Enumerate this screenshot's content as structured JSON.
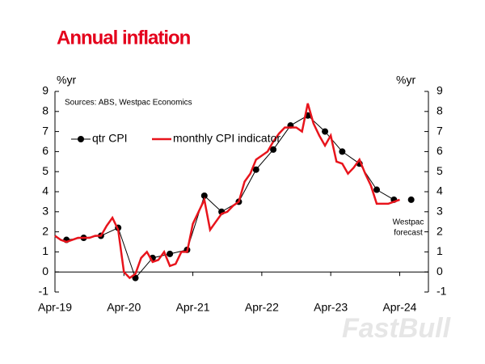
{
  "chart_data": {
    "type": "line",
    "title": "Annual inflation",
    "source": "Sources: ABS, Westpac Economics",
    "ylabel": "%yr",
    "y2label": "%yr",
    "xlim": [
      "2019-04",
      "2024-09"
    ],
    "xticks": [
      {
        "value": "2019-04",
        "label": "Apr-19"
      },
      {
        "value": "2020-04",
        "label": "Apr-20"
      },
      {
        "value": "2021-04",
        "label": "Apr-21"
      },
      {
        "value": "2022-04",
        "label": "Apr-22"
      },
      {
        "value": "2023-04",
        "label": "Apr-23"
      },
      {
        "value": "2024-04",
        "label": "Apr-24"
      }
    ],
    "ylim": [
      -1,
      9
    ],
    "yticks": [
      -1,
      0,
      1,
      2,
      3,
      4,
      5,
      6,
      7,
      8,
      9
    ],
    "y2lim": [
      -1,
      9
    ],
    "y2ticks": [
      -1,
      0,
      1,
      2,
      3,
      4,
      5,
      6,
      7,
      8,
      9
    ],
    "series": [
      {
        "name": "qtr CPI",
        "color": "#000000",
        "markers": true,
        "x": [
          "2019-06",
          "2019-09",
          "2019-12",
          "2020-03",
          "2020-06",
          "2020-09",
          "2020-12",
          "2021-03",
          "2021-06",
          "2021-09",
          "2021-12",
          "2022-03",
          "2022-06",
          "2022-09",
          "2022-12",
          "2023-03",
          "2023-06",
          "2023-09",
          "2023-12",
          "2024-03"
        ],
        "values": [
          1.6,
          1.7,
          1.8,
          2.2,
          -0.3,
          0.7,
          0.9,
          1.1,
          3.8,
          3.0,
          3.5,
          5.1,
          6.1,
          7.3,
          7.8,
          7.0,
          6.0,
          5.4,
          4.1,
          3.6
        ]
      },
      {
        "name": "monthly CPI indicator",
        "color": "#e8141c",
        "markers": false,
        "x": [
          "2019-04",
          "2019-05",
          "2019-06",
          "2019-07",
          "2019-08",
          "2019-09",
          "2019-10",
          "2019-11",
          "2019-12",
          "2020-01",
          "2020-02",
          "2020-03",
          "2020-04",
          "2020-05",
          "2020-06",
          "2020-07",
          "2020-08",
          "2020-09",
          "2020-10",
          "2020-11",
          "2020-12",
          "2021-01",
          "2021-02",
          "2021-03",
          "2021-04",
          "2021-05",
          "2021-06",
          "2021-07",
          "2021-08",
          "2021-09",
          "2021-10",
          "2021-11",
          "2021-12",
          "2022-01",
          "2022-02",
          "2022-03",
          "2022-04",
          "2022-05",
          "2022-06",
          "2022-07",
          "2022-08",
          "2022-09",
          "2022-10",
          "2022-11",
          "2022-12",
          "2023-01",
          "2023-02",
          "2023-03",
          "2023-04",
          "2023-05",
          "2023-06",
          "2023-07",
          "2023-08",
          "2023-09",
          "2023-10",
          "2023-11",
          "2023-12",
          "2024-01",
          "2024-02",
          "2024-03",
          "2024-04"
        ],
        "values": [
          1.8,
          1.6,
          1.5,
          1.6,
          1.7,
          1.7,
          1.7,
          1.8,
          1.8,
          2.3,
          2.7,
          2.1,
          0.0,
          -0.3,
          -0.1,
          0.7,
          1.0,
          0.5,
          0.6,
          1.0,
          0.3,
          0.4,
          1.0,
          1.0,
          2.4,
          3.0,
          3.6,
          2.1,
          2.5,
          2.9,
          3.0,
          3.3,
          3.5,
          4.5,
          4.9,
          5.6,
          5.8,
          6.0,
          6.5,
          6.9,
          7.2,
          7.2,
          7.2,
          7.0,
          8.4,
          7.4,
          6.8,
          6.3,
          6.8,
          5.5,
          5.4,
          4.9,
          5.2,
          5.6,
          4.9,
          4.3,
          3.4,
          3.4,
          3.4,
          3.5,
          3.6
        ]
      }
    ],
    "annotation": {
      "label": [
        "Westpac",
        "forecast"
      ],
      "x": "2024-06",
      "value": 3.6,
      "color": "#000000"
    },
    "legend": "upper left",
    "watermark": "FastBull"
  }
}
